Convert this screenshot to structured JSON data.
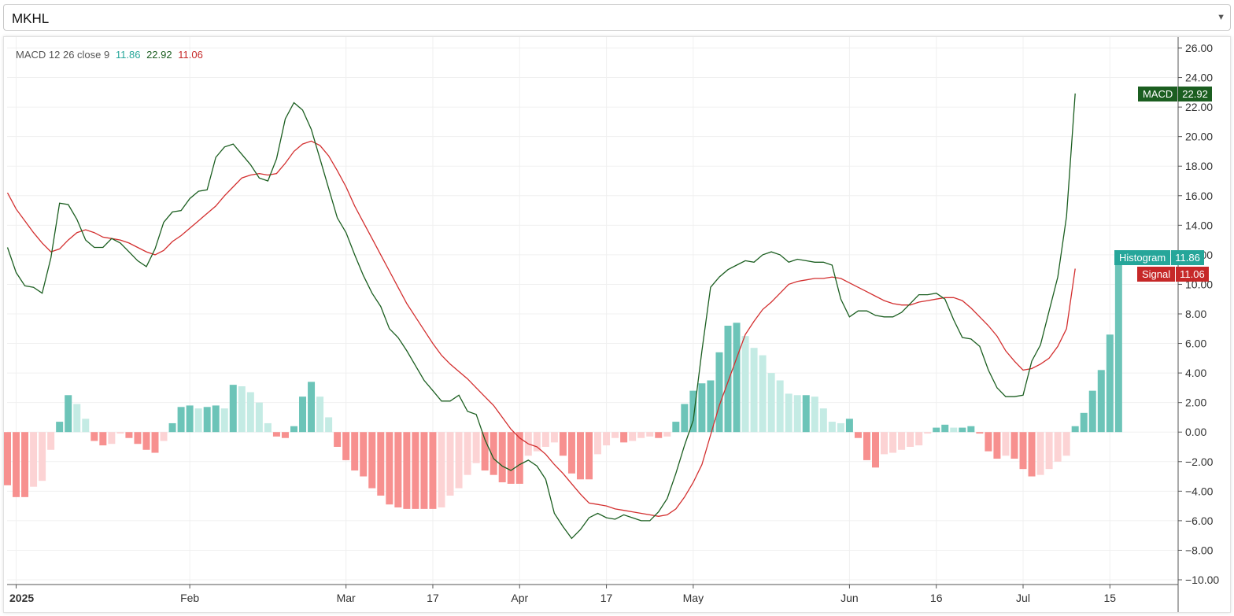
{
  "symbol_select": {
    "value": "MKHL"
  },
  "legend": {
    "indicator": "MACD 12 26 close 9",
    "histogram_value": "11.86",
    "macd_value": "22.92",
    "signal_value": "11.06"
  },
  "tags": {
    "macd": {
      "name": "MACD",
      "value": "22.92"
    },
    "histogram": {
      "name": "Histogram",
      "value": "11.86"
    },
    "signal": {
      "name": "Signal",
      "value": "11.06"
    }
  },
  "colors": {
    "macd_line": "#1b5e20",
    "signal_line": "#d32f2f",
    "hist_pos_strong": "#6cc4b8",
    "hist_pos_weak": "#c4ebe4",
    "hist_neg_strong": "#f7908f",
    "hist_neg_weak": "#fcd3d4"
  },
  "chart_data": {
    "type": "line",
    "y_axis": {
      "range": [
        -10,
        26
      ],
      "ticks": [
        "26.00",
        "24.00",
        "22.00",
        "20.00",
        "18.00",
        "16.00",
        "14.00",
        "12.00",
        "10.00",
        "8.00",
        "6.00",
        "4.00",
        "2.00",
        "0.00",
        "−2.00",
        "−4.00",
        "−6.00",
        "−8.00",
        "−10.00"
      ],
      "tick_values": [
        26,
        24,
        22,
        20,
        18,
        16,
        14,
        12,
        10,
        8,
        6,
        4,
        2,
        0,
        -2,
        -4,
        -6,
        -8,
        -10
      ]
    },
    "x_axis": {
      "ticks": [
        {
          "label": "2025",
          "index": 1,
          "bold": true
        },
        {
          "label": "Feb",
          "index": 21
        },
        {
          "label": "Mar",
          "index": 39
        },
        {
          "label": "17",
          "index": 49
        },
        {
          "label": "Apr",
          "index": 59
        },
        {
          "label": "17",
          "index": 69
        },
        {
          "label": "May",
          "index": 79
        },
        {
          "label": "Jun",
          "index": 97
        },
        {
          "label": "16",
          "index": 107
        },
        {
          "label": "Jul",
          "index": 117
        },
        {
          "label": "15",
          "index": 127
        }
      ]
    },
    "series": [
      {
        "name": "MACD",
        "values": [
          12.5,
          10.8,
          9.9,
          9.8,
          9.4,
          11.8,
          15.5,
          15.4,
          14.4,
          13.0,
          12.5,
          12.5,
          13.1,
          12.8,
          12.2,
          11.6,
          11.2,
          12.4,
          14.2,
          14.9,
          15.0,
          15.8,
          16.3,
          16.4,
          18.6,
          19.3,
          19.5,
          18.8,
          18.1,
          17.2,
          17.0,
          18.5,
          21.2,
          22.3,
          21.8,
          20.5,
          18.5,
          16.5,
          14.5,
          13.5,
          12.0,
          10.6,
          9.4,
          8.5,
          7.0,
          6.4,
          5.5,
          4.5,
          3.5,
          2.8,
          2.1,
          2.1,
          2.5,
          1.4,
          1.2,
          -0.5,
          -1.8,
          -2.3,
          -2.6,
          -2.2,
          -1.9,
          -2.3,
          -3.2,
          -5.5,
          -6.4,
          -7.2,
          -6.6,
          -5.8,
          -5.5,
          -5.8,
          -5.9,
          -5.6,
          -5.8,
          -6.0,
          -6.0,
          -5.4,
          -4.5,
          -2.8,
          -0.9,
          0.8,
          5.5,
          9.8,
          10.5,
          11.0,
          11.3,
          11.6,
          11.5,
          12.0,
          12.2,
          12.0,
          11.5,
          11.7,
          11.6,
          11.5,
          11.5,
          11.3,
          9.0,
          7.8,
          8.2,
          8.2,
          7.9,
          7.8,
          7.8,
          8.1,
          8.7,
          9.3,
          9.3,
          9.4,
          9.0,
          7.6,
          6.4,
          6.3,
          5.8,
          4.2,
          3.0,
          2.4,
          2.4,
          2.5,
          4.8,
          5.9,
          8.2,
          10.5,
          14.6,
          22.92
        ],
        "color": "#1b5e20"
      },
      {
        "name": "Signal",
        "values": [
          16.2,
          15.1,
          14.3,
          13.5,
          12.8,
          12.2,
          12.4,
          13.0,
          13.5,
          13.7,
          13.5,
          13.2,
          13.1,
          13.0,
          12.8,
          12.5,
          12.2,
          12.0,
          12.3,
          12.9,
          13.3,
          13.8,
          14.3,
          14.8,
          15.3,
          16.0,
          16.6,
          17.2,
          17.4,
          17.5,
          17.4,
          17.5,
          18.2,
          19.0,
          19.5,
          19.7,
          19.4,
          18.7,
          17.7,
          16.6,
          15.3,
          14.2,
          13.1,
          12.0,
          10.9,
          9.8,
          8.7,
          7.8,
          6.9,
          6.0,
          5.2,
          4.6,
          4.1,
          3.6,
          3.0,
          2.4,
          1.8,
          1.0,
          0.2,
          -0.4,
          -0.8,
          -1.0,
          -1.5,
          -2.2,
          -2.8,
          -3.5,
          -4.2,
          -4.8,
          -4.9,
          -5.0,
          -5.2,
          -5.3,
          -5.4,
          -5.5,
          -5.6,
          -5.7,
          -5.6,
          -5.2,
          -4.4,
          -3.4,
          -2.2,
          -0.2,
          1.8,
          3.4,
          5.0,
          6.6,
          7.5,
          8.3,
          8.8,
          9.4,
          10.0,
          10.2,
          10.3,
          10.4,
          10.4,
          10.5,
          10.4,
          10.1,
          9.8,
          9.5,
          9.2,
          8.9,
          8.7,
          8.6,
          8.6,
          8.8,
          8.9,
          9.0,
          9.1,
          9.1,
          8.9,
          8.4,
          7.8,
          7.2,
          6.5,
          5.5,
          4.8,
          4.2,
          4.3,
          4.6,
          5.0,
          5.8,
          7.0,
          11.06
        ],
        "color": "#d32f2f"
      },
      {
        "name": "Histogram",
        "values": [
          -3.6,
          -4.4,
          -4.4,
          -3.7,
          -3.3,
          -1.2,
          0.7,
          2.5,
          1.9,
          0.9,
          -0.6,
          -0.9,
          -0.8,
          -0.1,
          -0.4,
          -0.8,
          -1.2,
          -1.4,
          -0.6,
          0.6,
          1.7,
          1.8,
          1.6,
          1.7,
          1.8,
          1.6,
          3.2,
          3.1,
          2.7,
          2.0,
          0.6,
          -0.3,
          -0.4,
          0.4,
          2.4,
          3.4,
          2.4,
          1.0,
          -1.0,
          -1.9,
          -2.6,
          -3.0,
          -3.8,
          -4.3,
          -4.9,
          -5.1,
          -5.2,
          -5.2,
          -5.2,
          -5.2,
          -5.1,
          -4.3,
          -3.8,
          -2.9,
          -2.1,
          -2.6,
          -2.9,
          -3.4,
          -3.5,
          -3.5,
          -1.6,
          -1.3,
          -1.0,
          -0.7,
          -1.6,
          -2.8,
          -3.2,
          -3.2,
          -1.5,
          -0.9,
          -0.4,
          -0.7,
          -0.6,
          -0.4,
          -0.3,
          -0.4,
          -0.3,
          0.7,
          1.9,
          2.8,
          3.3,
          3.5,
          5.4,
          7.2,
          7.4,
          6.5,
          5.7,
          5.2,
          4.0,
          3.5,
          2.6,
          2.5,
          2.5,
          2.4,
          1.6,
          0.7,
          0.6,
          0.9,
          -0.4,
          -1.9,
          -2.4,
          -1.5,
          -1.4,
          -1.2,
          -1.0,
          -0.9,
          -0.1,
          0.3,
          0.5,
          0.3,
          0.3,
          0.4,
          -0.1,
          -1.3,
          -1.8,
          -1.6,
          -1.8,
          -2.5,
          -3.0,
          -2.9,
          -2.5,
          -2.0,
          -1.6,
          0.4,
          1.3,
          2.8,
          4.2,
          6.6,
          11.86
        ],
        "colors_by_index": "per-bar strong/weak shading by momentum"
      }
    ],
    "grid": true,
    "legend_position": "top-left"
  }
}
